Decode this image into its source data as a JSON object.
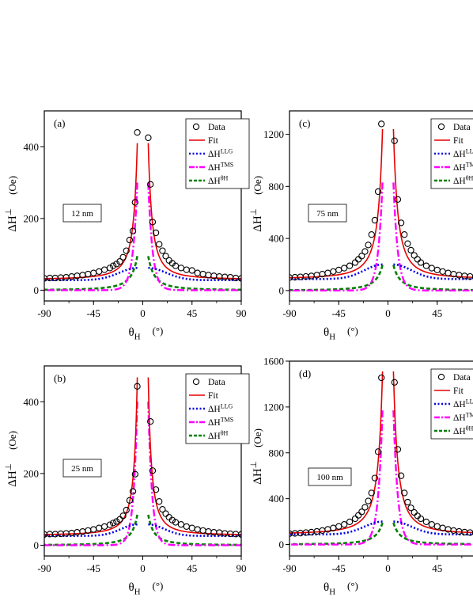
{
  "chart_data": [
    {
      "type": "line",
      "panel_label": "(a)",
      "thickness_label": "12 nm",
      "xlabel": "θH",
      "xunit": "(°)",
      "ylabel": "ΔH⊥",
      "yunit": "(Oe)",
      "xlim": [
        -90,
        90
      ],
      "ylim": [
        -30,
        500
      ],
      "x_ticks": [
        -90,
        -45,
        0,
        45,
        90
      ],
      "y_ticks": [
        0,
        200,
        400
      ],
      "legend": [
        "Data",
        "Fit",
        "ΔH^LLG",
        "ΔH^TMS",
        "ΔH^θH"
      ],
      "legend_position": "top-right",
      "params": {
        "base": 30,
        "fitA": 380,
        "fitW": 7,
        "llgBase": 28,
        "llgPeak": 62,
        "llgW": 18,
        "tmsA": 300,
        "tmsW": 4,
        "thA": 95,
        "thW": 11,
        "gap": 5
      },
      "data_points": [
        [
          -90,
          33
        ],
        [
          -85,
          34
        ],
        [
          -80,
          34
        ],
        [
          -75,
          35
        ],
        [
          -70,
          36
        ],
        [
          -65,
          38
        ],
        [
          -60,
          40
        ],
        [
          -55,
          42
        ],
        [
          -50,
          45
        ],
        [
          -45,
          48
        ],
        [
          -40,
          52
        ],
        [
          -35,
          57
        ],
        [
          -30,
          62
        ],
        [
          -27,
          68
        ],
        [
          -24,
          73
        ],
        [
          -21,
          80
        ],
        [
          -18,
          92
        ],
        [
          -15,
          110
        ],
        [
          -12,
          140
        ],
        [
          -9,
          165
        ],
        [
          -7,
          245
        ],
        [
          -5,
          440
        ],
        [
          5,
          425
        ],
        [
          7,
          295
        ],
        [
          9,
          190
        ],
        [
          12,
          160
        ],
        [
          15,
          128
        ],
        [
          18,
          110
        ],
        [
          21,
          95
        ],
        [
          24,
          83
        ],
        [
          27,
          75
        ],
        [
          30,
          68
        ],
        [
          35,
          62
        ],
        [
          40,
          57
        ],
        [
          45,
          55
        ],
        [
          50,
          48
        ],
        [
          55,
          45
        ],
        [
          60,
          42
        ],
        [
          65,
          40
        ],
        [
          70,
          38
        ],
        [
          75,
          37
        ],
        [
          80,
          36
        ],
        [
          85,
          34
        ],
        [
          90,
          33
        ]
      ]
    },
    {
      "type": "line",
      "panel_label": "(c)",
      "thickness_label": "75 nm",
      "xlabel": "θH",
      "xunit": "(°)",
      "ylabel": "ΔH⊥",
      "yunit": "(Oe)",
      "xlim": [
        -90,
        90
      ],
      "ylim": [
        -80,
        1380
      ],
      "x_ticks": [
        -90,
        -45,
        0,
        45
      ],
      "y_ticks": [
        0,
        400,
        800,
        1200
      ],
      "legend": [
        "Data",
        "Fit",
        "ΔH^LLG",
        "ΔH^TMS",
        "ΔH^θH"
      ],
      "legend_position": "top-right",
      "params": {
        "base": 90,
        "fitA": 1150,
        "fitW": 8,
        "llgBase": 88,
        "llgPeak": 200,
        "llgW": 18,
        "tmsA": 830,
        "tmsW": 4,
        "thA": 195,
        "thW": 12,
        "gap": 5
      },
      "data_points": [
        [
          -90,
          100
        ],
        [
          -85,
          102
        ],
        [
          -80,
          105
        ],
        [
          -75,
          108
        ],
        [
          -70,
          112
        ],
        [
          -65,
          118
        ],
        [
          -60,
          126
        ],
        [
          -55,
          135
        ],
        [
          -50,
          146
        ],
        [
          -45,
          158
        ],
        [
          -40,
          172
        ],
        [
          -35,
          190
        ],
        [
          -30,
          215
        ],
        [
          -27,
          240
        ],
        [
          -24,
          265
        ],
        [
          -21,
          300
        ],
        [
          -18,
          350
        ],
        [
          -15,
          430
        ],
        [
          -12,
          540
        ],
        [
          -9,
          760
        ],
        [
          -6,
          1280
        ],
        [
          6,
          1150
        ],
        [
          9,
          700
        ],
        [
          12,
          520
        ],
        [
          15,
          430
        ],
        [
          18,
          360
        ],
        [
          21,
          310
        ],
        [
          24,
          270
        ],
        [
          27,
          240
        ],
        [
          30,
          215
        ],
        [
          35,
          190
        ],
        [
          40,
          172
        ],
        [
          45,
          158
        ],
        [
          50,
          146
        ],
        [
          55,
          135
        ],
        [
          60,
          126
        ],
        [
          65,
          118
        ],
        [
          70,
          112
        ],
        [
          75,
          108
        ],
        [
          80,
          105
        ],
        [
          85,
          102
        ],
        [
          90,
          100
        ]
      ]
    },
    {
      "type": "line",
      "panel_label": "(b)",
      "thickness_label": "25 nm",
      "xlabel": "θH",
      "xunit": "(°)",
      "ylabel": "ΔH⊥",
      "yunit": "(Oe)",
      "xlim": [
        -90,
        90
      ],
      "ylim": [
        -30,
        500
      ],
      "x_ticks": [
        -90,
        -45,
        0,
        45,
        90
      ],
      "y_ticks": [
        0,
        200,
        400
      ],
      "legend": [
        "Data",
        "Fit",
        "ΔH^LLG",
        "ΔH^TMS",
        "ΔH^θH"
      ],
      "legend_position": "top-right",
      "params": {
        "base": 28,
        "fitA": 440,
        "fitW": 6,
        "llgBase": 26,
        "llgPeak": 58,
        "llgW": 16,
        "tmsA": 400,
        "tmsW": 3.5,
        "thA": 85,
        "thW": 10,
        "gap": 5
      },
      "data_points": [
        [
          -90,
          30
        ],
        [
          -85,
          31
        ],
        [
          -80,
          31
        ],
        [
          -75,
          32
        ],
        [
          -70,
          33
        ],
        [
          -65,
          34
        ],
        [
          -60,
          36
        ],
        [
          -55,
          38
        ],
        [
          -50,
          41
        ],
        [
          -45,
          44
        ],
        [
          -40,
          48
        ],
        [
          -35,
          52
        ],
        [
          -30,
          57
        ],
        [
          -27,
          62
        ],
        [
          -24,
          66
        ],
        [
          -21,
          72
        ],
        [
          -18,
          82
        ],
        [
          -15,
          98
        ],
        [
          -12,
          125
        ],
        [
          -9,
          150
        ],
        [
          -7,
          198
        ],
        [
          -5,
          443
        ],
        [
          7,
          345
        ],
        [
          9,
          208
        ],
        [
          12,
          155
        ],
        [
          15,
          122
        ],
        [
          18,
          100
        ],
        [
          21,
          88
        ],
        [
          24,
          78
        ],
        [
          27,
          70
        ],
        [
          30,
          64
        ],
        [
          35,
          58
        ],
        [
          40,
          52
        ],
        [
          45,
          48
        ],
        [
          50,
          44
        ],
        [
          55,
          41
        ],
        [
          60,
          38
        ],
        [
          65,
          36
        ],
        [
          70,
          35
        ],
        [
          75,
          33
        ],
        [
          80,
          32
        ],
        [
          85,
          31
        ],
        [
          90,
          30
        ]
      ]
    },
    {
      "type": "line",
      "panel_label": "(d)",
      "thickness_label": "100 nm",
      "xlabel": "θH",
      "xunit": "(°)",
      "ylabel": "ΔH⊥",
      "yunit": "(Oe)",
      "xlim": [
        -90,
        90
      ],
      "ylim": [
        -100,
        1600
      ],
      "x_ticks": [
        -90,
        -45,
        0,
        45
      ],
      "y_ticks": [
        0,
        400,
        800,
        1200,
        1600
      ],
      "legend": [
        "Data",
        "Fit",
        "ΔH^LLG",
        "ΔH^TMS",
        "ΔH^θH"
      ],
      "legend_position": "top-right",
      "params": {
        "base": 90,
        "fitA": 1420,
        "fitW": 8,
        "llgBase": 88,
        "llgPeak": 200,
        "llgW": 18,
        "tmsA": 1170,
        "tmsW": 4,
        "thA": 190,
        "thW": 12,
        "gap": 5
      },
      "data_points": [
        [
          -90,
          95
        ],
        [
          -85,
          97
        ],
        [
          -80,
          100
        ],
        [
          -75,
          104
        ],
        [
          -70,
          108
        ],
        [
          -65,
          114
        ],
        [
          -60,
          122
        ],
        [
          -55,
          132
        ],
        [
          -50,
          144
        ],
        [
          -45,
          158
        ],
        [
          -40,
          175
        ],
        [
          -35,
          198
        ],
        [
          -30,
          225
        ],
        [
          -27,
          255
        ],
        [
          -24,
          285
        ],
        [
          -21,
          325
        ],
        [
          -18,
          380
        ],
        [
          -15,
          450
        ],
        [
          -12,
          580
        ],
        [
          -9,
          810
        ],
        [
          -6,
          1455
        ],
        [
          6,
          1415
        ],
        [
          9,
          830
        ],
        [
          12,
          600
        ],
        [
          15,
          450
        ],
        [
          18,
          370
        ],
        [
          21,
          320
        ],
        [
          24,
          280
        ],
        [
          27,
          250
        ],
        [
          30,
          225
        ],
        [
          35,
          198
        ],
        [
          40,
          175
        ],
        [
          45,
          158
        ],
        [
          50,
          144
        ],
        [
          55,
          132
        ],
        [
          60,
          122
        ],
        [
          65,
          114
        ],
        [
          70,
          108
        ],
        [
          75,
          104
        ],
        [
          80,
          100
        ],
        [
          85,
          97
        ],
        [
          90,
          95
        ]
      ]
    }
  ],
  "colors": {
    "data": "#000000",
    "fit": "#e60000",
    "llg": "#0000e6",
    "tms": "#ff00ff",
    "theta": "#008000"
  }
}
